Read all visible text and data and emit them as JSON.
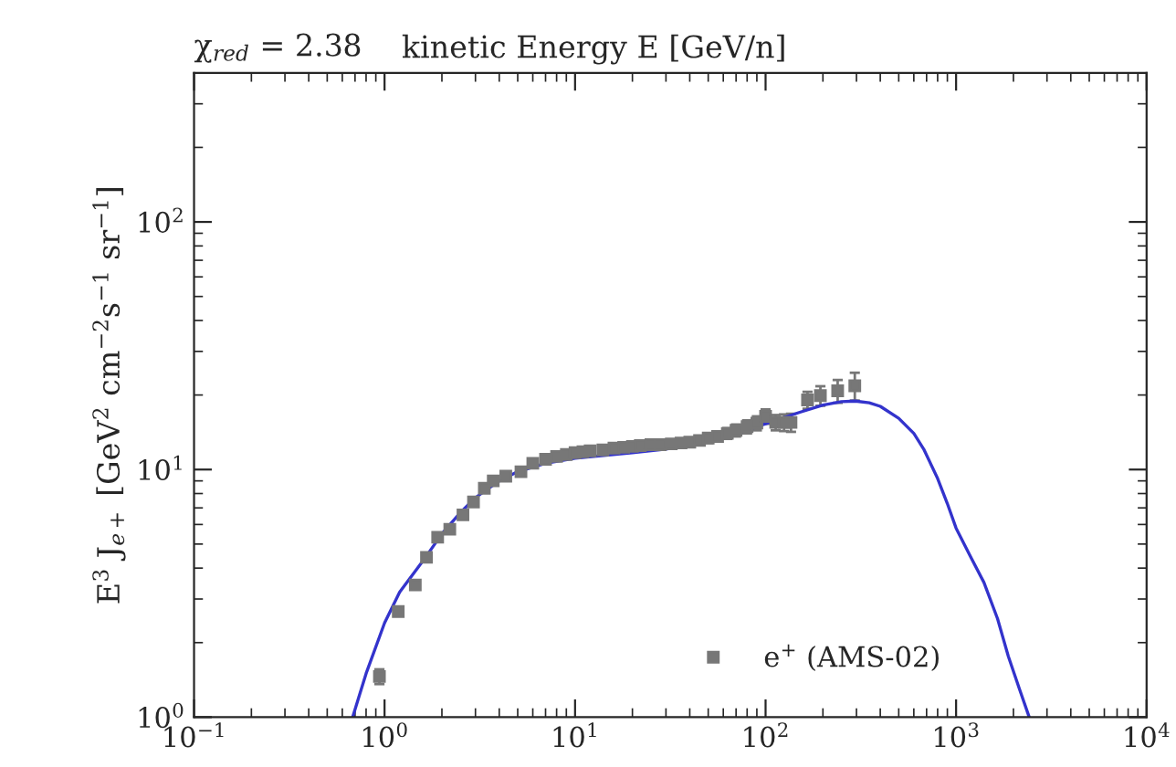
{
  "chart_data": {
    "type": "scatter",
    "title": "kinetic Energy E [GeV/n]",
    "ylabel": "E$^{3}$ J$_{e+}$ [GeV$^{2}$ cm$^{−2}$s$^{−1}$ sr$^{−1}$]",
    "annotations": [
      "χ$_{red}$ = 2.38"
    ],
    "log": "xy",
    "xlim": [
      0.1,
      10000
    ],
    "ylim": [
      1,
      400
    ],
    "xticks": [
      {
        "value": 0.1,
        "label": "10$^{−1}$"
      },
      {
        "value": 1,
        "label": "10$^{0}$"
      },
      {
        "value": 10,
        "label": "10$^{1}$"
      },
      {
        "value": 100,
        "label": "10$^{2}$"
      },
      {
        "value": 1000,
        "label": "10$^{3}$"
      },
      {
        "value": 10000,
        "label": "10$^{4}$"
      }
    ],
    "yticks": [
      {
        "value": 1,
        "label": "10$^{0}$"
      },
      {
        "value": 10,
        "label": "10$^{1}$"
      },
      {
        "value": 100,
        "label": "10$^{2}$"
      }
    ],
    "grid": false,
    "legend": "bottom",
    "series": [
      {
        "name": "e$^{+}$ (AMS-02)",
        "marker": "square",
        "color": "#777777",
        "x": [
          0.94,
          1.18,
          1.45,
          1.66,
          1.9,
          2.2,
          2.58,
          2.93,
          3.34,
          3.72,
          4.33,
          5.2,
          6,
          7,
          8,
          9,
          10,
          11,
          12,
          14,
          16,
          18,
          20,
          22,
          25,
          28,
          32,
          36,
          40,
          45,
          50,
          56,
          63,
          70,
          80,
          90,
          100,
          113,
          125,
          136,
          166,
          194,
          239,
          294
        ],
        "values": [
          1.46,
          2.67,
          3.42,
          4.42,
          5.33,
          5.74,
          6.56,
          7.4,
          8.4,
          9.0,
          9.4,
          9.8,
          10.6,
          11.0,
          11.3,
          11.5,
          11.7,
          11.8,
          11.9,
          12.0,
          12.2,
          12.3,
          12.4,
          12.5,
          12.6,
          12.6,
          12.7,
          12.8,
          12.9,
          13.1,
          13.4,
          13.6,
          14.0,
          14.4,
          14.9,
          15.4,
          16.4,
          15.5,
          15.5,
          15.5,
          19.1,
          19.9,
          20.8,
          21.8
        ],
        "errors": [
          0.1,
          0.1,
          0.1,
          0.15,
          0.15,
          0.15,
          0.2,
          0.2,
          0.2,
          0.2,
          0.2,
          0.2,
          0.2,
          0.2,
          0.2,
          0.2,
          0.2,
          0.2,
          0.2,
          0.2,
          0.3,
          0.3,
          0.3,
          0.3,
          0.3,
          0.4,
          0.4,
          0.4,
          0.5,
          0.5,
          0.6,
          0.6,
          0.7,
          0.8,
          0.9,
          1.0,
          1.1,
          1.1,
          1.2,
          1.3,
          1.5,
          1.8,
          2.2,
          2.8
        ]
      },
      {
        "type": "line",
        "color": "#3333cc",
        "marker": "none",
        "line_style": "solid",
        "x": [
          0.68,
          0.8,
          1,
          1.2,
          1.6,
          2,
          2.5,
          3,
          4,
          5,
          7,
          10,
          20,
          30,
          50,
          70,
          100,
          150,
          200,
          250,
          296,
          350,
          400,
          500,
          600,
          676,
          800,
          899,
          1000,
          1200,
          1400,
          1650,
          1880,
          2150,
          2420
        ],
        "values": [
          1.0,
          1.5,
          2.4,
          3.2,
          4.3,
          5.5,
          6.7,
          7.7,
          9.0,
          9.8,
          10.6,
          11.1,
          11.7,
          12.1,
          13.0,
          14.0,
          15.3,
          17.0,
          18.2,
          18.8,
          18.9,
          18.6,
          18.0,
          16.1,
          14.0,
          12.1,
          9.2,
          7.3,
          5.8,
          4.4,
          3.5,
          2.5,
          1.76,
          1.3,
          1.0
        ]
      }
    ]
  }
}
